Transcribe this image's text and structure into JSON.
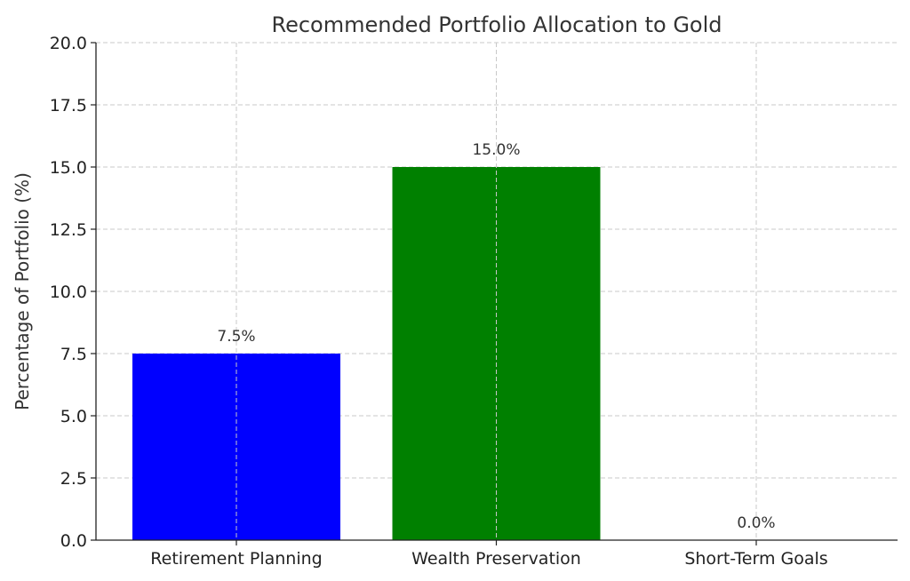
{
  "chart_data": {
    "type": "bar",
    "title": "Recommended Portfolio Allocation to Gold",
    "xlabel": "",
    "ylabel": "Percentage of Portfolio (%)",
    "categories": [
      "Retirement Planning",
      "Wealth Preservation",
      "Short-Term Goals"
    ],
    "values": [
      7.5,
      15.0,
      0.0
    ],
    "data_labels": [
      "7.5%",
      "15.0%",
      "0.0%"
    ],
    "colors": [
      "#0000ff",
      "#008000",
      "#ff0000"
    ],
    "ylim": [
      0,
      20
    ],
    "yticks": [
      "0.0",
      "2.5",
      "5.0",
      "7.5",
      "10.0",
      "12.5",
      "15.0",
      "17.5",
      "20.0"
    ],
    "grid": true,
    "legend": "none"
  }
}
